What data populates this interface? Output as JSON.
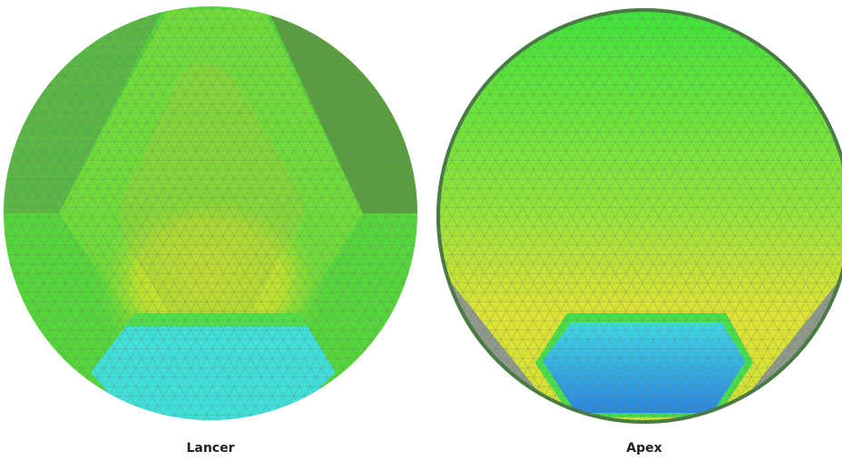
{
  "figures": [
    {
      "caption": "Lancer"
    },
    {
      "caption": "Apex"
    }
  ]
}
